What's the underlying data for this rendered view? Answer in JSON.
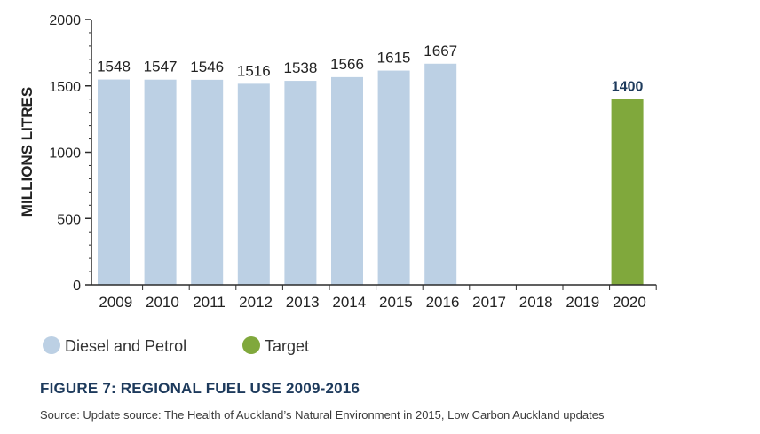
{
  "chart_data": {
    "type": "bar",
    "categories": [
      "2009",
      "2010",
      "2011",
      "2012",
      "2013",
      "2014",
      "2015",
      "2016",
      "2017",
      "2018",
      "2019",
      "2020"
    ],
    "series": [
      {
        "name": "Diesel and Petrol",
        "values": [
          1548,
          1547,
          1546,
          1516,
          1538,
          1566,
          1615,
          1667,
          null,
          null,
          null,
          null
        ]
      },
      {
        "name": "Target",
        "values": [
          null,
          null,
          null,
          null,
          null,
          null,
          null,
          null,
          null,
          null,
          null,
          1400
        ]
      }
    ],
    "data_labels": [
      "1548",
      "1547",
      "1546",
      "1516",
      "1538",
      "1566",
      "1615",
      "1667",
      "",
      "",
      "",
      "1400"
    ],
    "ylabel": "MILLIONS LITRES",
    "ylim": [
      0,
      2000
    ],
    "yticks": [
      0,
      500,
      1000,
      1500,
      2000
    ],
    "legend_placement": "bottom-left",
    "colors": {
      "series": [
        "#bcd0e4",
        "#80a83c"
      ],
      "target_label": "#1d3a5c",
      "title": "#1d3a5c"
    }
  },
  "figure": {
    "title": "FIGURE 7: REGIONAL FUEL USE 2009-2016",
    "source": "Source: Update source: The Health of Auckland’s Natural Environment in 2015,  Low Carbon Auckland updates"
  }
}
